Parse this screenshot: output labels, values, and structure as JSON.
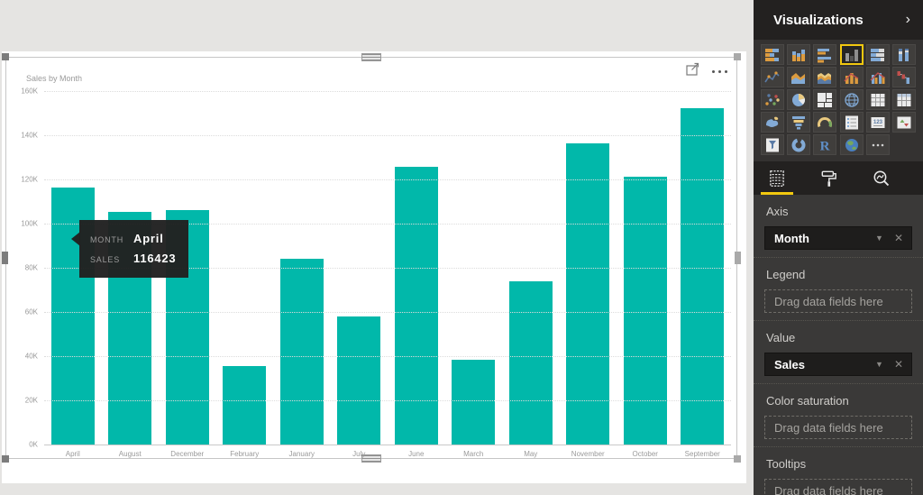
{
  "canvas": {
    "visual": {
      "title": "Sales by Month",
      "tooltip": {
        "rows": [
          {
            "label": "MONTH",
            "value": "April"
          },
          {
            "label": "SALES",
            "value": "116423"
          }
        ]
      }
    }
  },
  "chart_data": {
    "type": "bar",
    "title": "Sales by Month",
    "categories": [
      "April",
      "August",
      "December",
      "February",
      "January",
      "July",
      "June",
      "March",
      "May",
      "November",
      "October",
      "September"
    ],
    "values": [
      116423,
      105500,
      106200,
      35400,
      84100,
      57900,
      125800,
      38400,
      73800,
      136400,
      121100,
      152300
    ],
    "xlabel": "Month",
    "ylabel": "Sales",
    "ylim": [
      0,
      160000
    ],
    "y_ticks": [
      "160K",
      "140K",
      "120K",
      "100K",
      "80K",
      "60K",
      "40K",
      "20K",
      "0K"
    ],
    "grid": true,
    "legend": "none",
    "bar_color": "#01B8AA"
  },
  "visualizations_pane": {
    "title": "Visualizations",
    "collapse_chevron": "›",
    "accent_color": "#F2C80F",
    "icon_grid": [
      {
        "name": "stacked-bar-chart",
        "selected": false
      },
      {
        "name": "stacked-column-chart",
        "selected": false
      },
      {
        "name": "clustered-bar-chart",
        "selected": false
      },
      {
        "name": "clustered-column-chart",
        "selected": true
      },
      {
        "name": "stacked-bar-100-chart",
        "selected": false
      },
      {
        "name": "stacked-column-100-chart",
        "selected": false
      },
      {
        "name": "line-chart",
        "selected": false
      },
      {
        "name": "area-chart",
        "selected": false
      },
      {
        "name": "stacked-area-chart",
        "selected": false
      },
      {
        "name": "line-stacked-column-chart",
        "selected": false
      },
      {
        "name": "line-clustered-column-chart",
        "selected": false
      },
      {
        "name": "waterfall-chart",
        "selected": false
      },
      {
        "name": "scatter-chart",
        "selected": false
      },
      {
        "name": "pie-chart",
        "selected": false
      },
      {
        "name": "treemap",
        "selected": false
      },
      {
        "name": "map",
        "selected": false
      },
      {
        "name": "table",
        "selected": false
      },
      {
        "name": "matrix",
        "selected": false
      },
      {
        "name": "filled-map",
        "selected": false
      },
      {
        "name": "funnel",
        "selected": false
      },
      {
        "name": "gauge",
        "selected": false
      },
      {
        "name": "multi-row-card",
        "selected": false
      },
      {
        "name": "card",
        "selected": false
      },
      {
        "name": "kpi",
        "selected": false
      },
      {
        "name": "slicer",
        "selected": false
      },
      {
        "name": "donut-chart",
        "selected": false
      },
      {
        "name": "r-script",
        "selected": false
      },
      {
        "name": "arcgis-map",
        "selected": false
      },
      {
        "name": "more-options",
        "selected": false
      }
    ],
    "tabs": [
      {
        "name": "fields",
        "selected": true
      },
      {
        "name": "format",
        "selected": false
      },
      {
        "name": "analytics",
        "selected": false
      }
    ],
    "field_wells": [
      {
        "label": "Axis",
        "pill": "Month"
      },
      {
        "label": "Legend",
        "placeholder": "Drag data fields here"
      },
      {
        "label": "Value",
        "pill": "Sales"
      },
      {
        "label": "Color saturation",
        "placeholder": "Drag data fields here"
      },
      {
        "label": "Tooltips",
        "placeholder": "Drag data fields here"
      }
    ]
  }
}
